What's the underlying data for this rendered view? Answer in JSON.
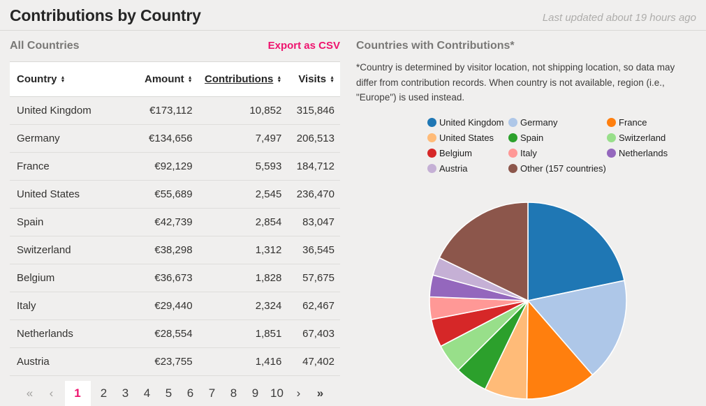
{
  "page": {
    "title": "Contributions by Country",
    "last_updated": "Last updated about 19 hours ago"
  },
  "left_panel": {
    "heading": "All Countries",
    "export_label": "Export as CSV",
    "table": {
      "columns": [
        {
          "label": "Country"
        },
        {
          "label": "Amount"
        },
        {
          "label": "Contributions"
        },
        {
          "label": "Visits"
        }
      ],
      "sorted_column": "Contributions",
      "rows": [
        {
          "country": "United Kingdom",
          "amount": "€173,112",
          "contributions": "10,852",
          "visits": "315,846"
        },
        {
          "country": "Germany",
          "amount": "€134,656",
          "contributions": "7,497",
          "visits": "206,513"
        },
        {
          "country": "France",
          "amount": "€92,129",
          "contributions": "5,593",
          "visits": "184,712"
        },
        {
          "country": "United States",
          "amount": "€55,689",
          "contributions": "2,545",
          "visits": "236,470"
        },
        {
          "country": "Spain",
          "amount": "€42,739",
          "contributions": "2,854",
          "visits": "83,047"
        },
        {
          "country": "Switzerland",
          "amount": "€38,298",
          "contributions": "1,312",
          "visits": "36,545"
        },
        {
          "country": "Belgium",
          "amount": "€36,673",
          "contributions": "1,828",
          "visits": "57,675"
        },
        {
          "country": "Italy",
          "amount": "€29,440",
          "contributions": "2,324",
          "visits": "62,467"
        },
        {
          "country": "Netherlands",
          "amount": "€28,554",
          "contributions": "1,851",
          "visits": "67,403"
        },
        {
          "country": "Austria",
          "amount": "€23,755",
          "contributions": "1,416",
          "visits": "47,402"
        }
      ]
    },
    "pagination": {
      "first": "«",
      "prev": "‹",
      "pages": [
        "1",
        "2",
        "3",
        "4",
        "5",
        "6",
        "7",
        "8",
        "9",
        "10"
      ],
      "active_page": "1",
      "next": "›",
      "last": "»"
    }
  },
  "right_panel": {
    "heading": "Countries with Contributions*",
    "disclaimer": "*Country is determined by visitor location, not shipping location, so data may differ from contribution records. When country is not available, region (i.e., \"Europe\") is used instead."
  },
  "chart_data": {
    "type": "pie",
    "title": "Countries with Contributions*",
    "legend_position": "top",
    "start_angle_deg": 0,
    "direction": "clockwise",
    "currency": "EUR",
    "slices": [
      {
        "label": "United Kingdom",
        "value": 173112,
        "color": "#1f77b4"
      },
      {
        "label": "Germany",
        "value": 134656,
        "color": "#aec7e8"
      },
      {
        "label": "France",
        "value": 92129,
        "color": "#ff7f0e"
      },
      {
        "label": "United States",
        "value": 55689,
        "color": "#ffbb78"
      },
      {
        "label": "Spain",
        "value": 42739,
        "color": "#2ca02c"
      },
      {
        "label": "Switzerland",
        "value": 38298,
        "color": "#98df8a"
      },
      {
        "label": "Belgium",
        "value": 36673,
        "color": "#d62728"
      },
      {
        "label": "Italy",
        "value": 29440,
        "color": "#ff9896"
      },
      {
        "label": "Netherlands",
        "value": 28554,
        "color": "#9467bd"
      },
      {
        "label": "Austria",
        "value": 23755,
        "color": "#c5b0d5"
      },
      {
        "label": "Other (157 countries)",
        "value": 142000,
        "color": "#8c564b"
      }
    ]
  },
  "theme": {
    "accent_pink": "#ee146e",
    "page_bg": "#f0efee",
    "slice_stroke": "#ffffff"
  }
}
